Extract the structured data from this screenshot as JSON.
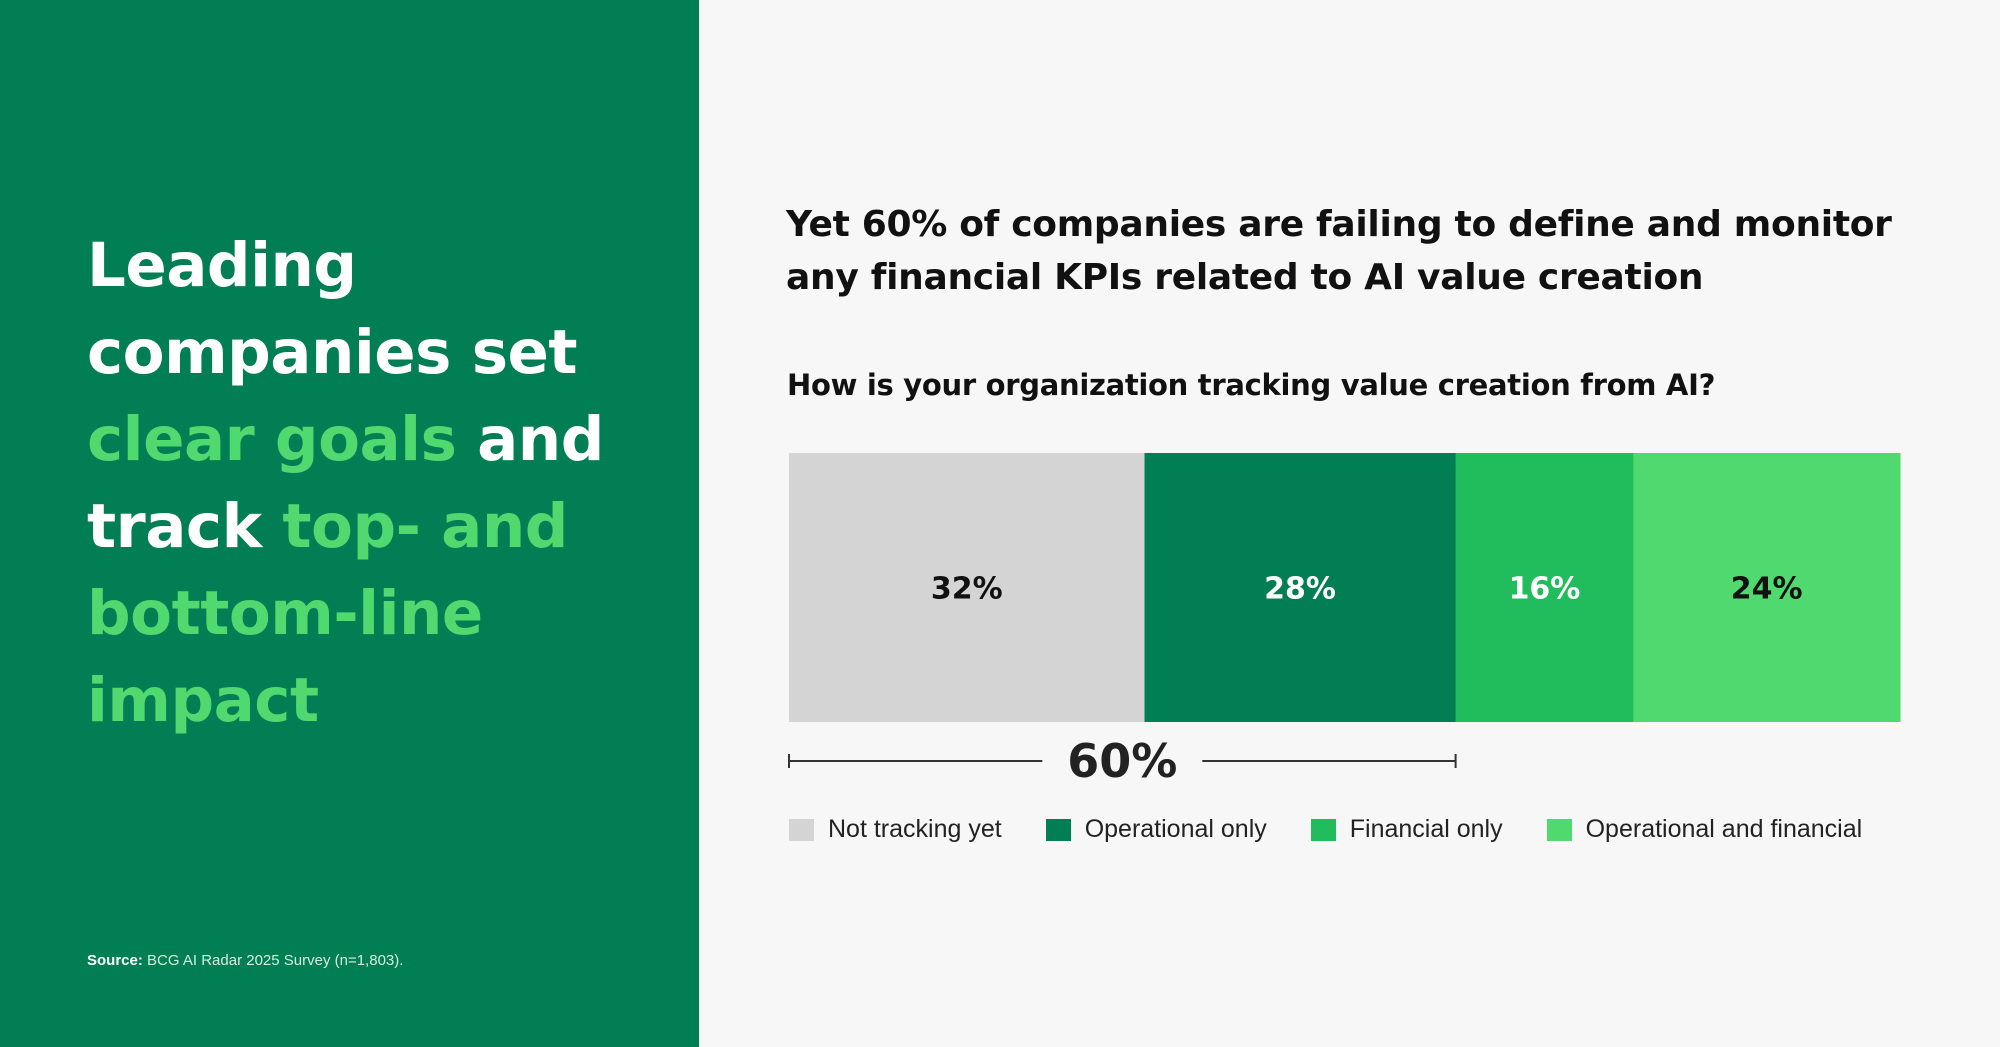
{
  "left_panel": {
    "headline_parts": [
      {
        "text": "Leading companies set ",
        "accent": false
      },
      {
        "text": "clear goals",
        "accent": true
      },
      {
        "text": " and track ",
        "accent": false
      },
      {
        "text": "top- and bottom-line impact",
        "accent": true
      }
    ],
    "source_label": "Source:",
    "source_text": " BCG AI Radar 2025 Survey (n=1,803)."
  },
  "colors": {
    "panel_green": "#017e53",
    "accent_green": "#4fd96f",
    "background": "#f7f7f7"
  },
  "chart_data": {
    "type": "bar",
    "orientation": "horizontal-stacked-100",
    "title": "Yet 60% of companies are failing to define and monitor any financial KPIs related to AI value creation",
    "subtitle": "How is your organization tracking value creation from AI?",
    "series": [
      {
        "name": "Not tracking yet",
        "value": 32,
        "label": "32%",
        "color": "#d4d4d4",
        "label_color": "#111111"
      },
      {
        "name": "Operational only",
        "value": 28,
        "label": "28%",
        "color": "#017e53",
        "label_color": "#ffffff"
      },
      {
        "name": "Financial only",
        "value": 16,
        "label": "16%",
        "color": "#21bd5c",
        "label_color": "#ffffff"
      },
      {
        "name": "Operational and financial",
        "value": 24,
        "label": "24%",
        "color": "#4fd96f",
        "label_color": "#111111"
      }
    ],
    "bracket": {
      "label": "60%",
      "spans_series": [
        0,
        1
      ]
    },
    "legend_position": "bottom"
  }
}
